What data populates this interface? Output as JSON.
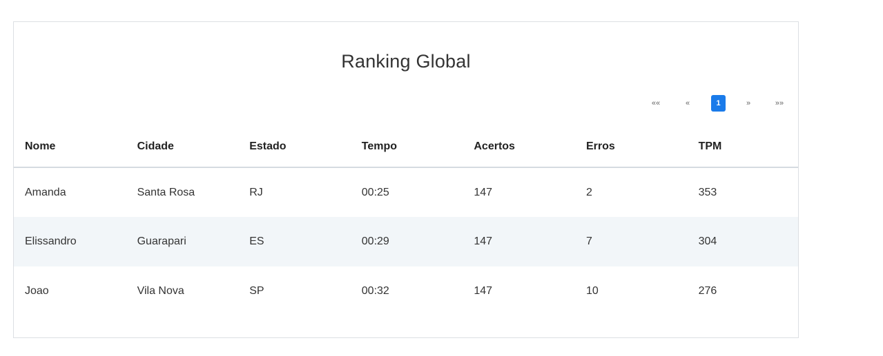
{
  "title": "Ranking Global",
  "pagination": {
    "first": "««",
    "prev": "«",
    "current": "1",
    "next": "»",
    "last": "»»"
  },
  "table": {
    "headers": [
      "Nome",
      "Cidade",
      "Estado",
      "Tempo",
      "Acertos",
      "Erros",
      "TPM"
    ],
    "rows": [
      [
        "Amanda",
        "Santa Rosa",
        "RJ",
        "00:25",
        "147",
        "2",
        "353"
      ],
      [
        "Elissandro",
        "Guarapari",
        "ES",
        "00:29",
        "147",
        "7",
        "304"
      ],
      [
        "Joao",
        "Vila Nova",
        "SP",
        "00:32",
        "147",
        "10",
        "276"
      ]
    ]
  },
  "colors": {
    "accent": "#1a7bea",
    "striped_row": "#f2f6f9",
    "border": "#dcdfe3"
  }
}
